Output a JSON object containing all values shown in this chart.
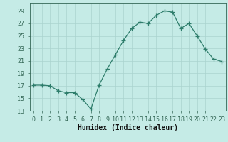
{
  "x": [
    0,
    1,
    2,
    3,
    4,
    5,
    6,
    7,
    8,
    9,
    10,
    11,
    12,
    13,
    14,
    15,
    16,
    17,
    18,
    19,
    20,
    21,
    22,
    23
  ],
  "y": [
    17.1,
    17.1,
    17.0,
    16.2,
    15.9,
    15.9,
    14.8,
    13.3,
    17.1,
    19.7,
    22.0,
    24.3,
    26.2,
    27.2,
    27.0,
    28.3,
    29.0,
    28.8,
    26.2,
    27.0,
    25.0,
    22.9,
    21.3,
    20.9
  ],
  "line_color": "#2e7d6b",
  "marker": "+",
  "marker_size": 4,
  "xlabel": "Humidex (Indice chaleur)",
  "ylim": [
    13,
    30
  ],
  "xlim": [
    -0.5,
    23.5
  ],
  "yticks": [
    13,
    15,
    17,
    19,
    21,
    23,
    25,
    27,
    29
  ],
  "xticks": [
    0,
    1,
    2,
    3,
    4,
    5,
    6,
    7,
    8,
    9,
    10,
    11,
    12,
    13,
    14,
    15,
    16,
    17,
    18,
    19,
    20,
    21,
    22,
    23
  ],
  "bg_color": "#c5ebe6",
  "grid_color": "#aad4ce",
  "axes_color": "#336655",
  "font_color": "#111111",
  "tick_fontsize": 6,
  "xlabel_fontsize": 7
}
